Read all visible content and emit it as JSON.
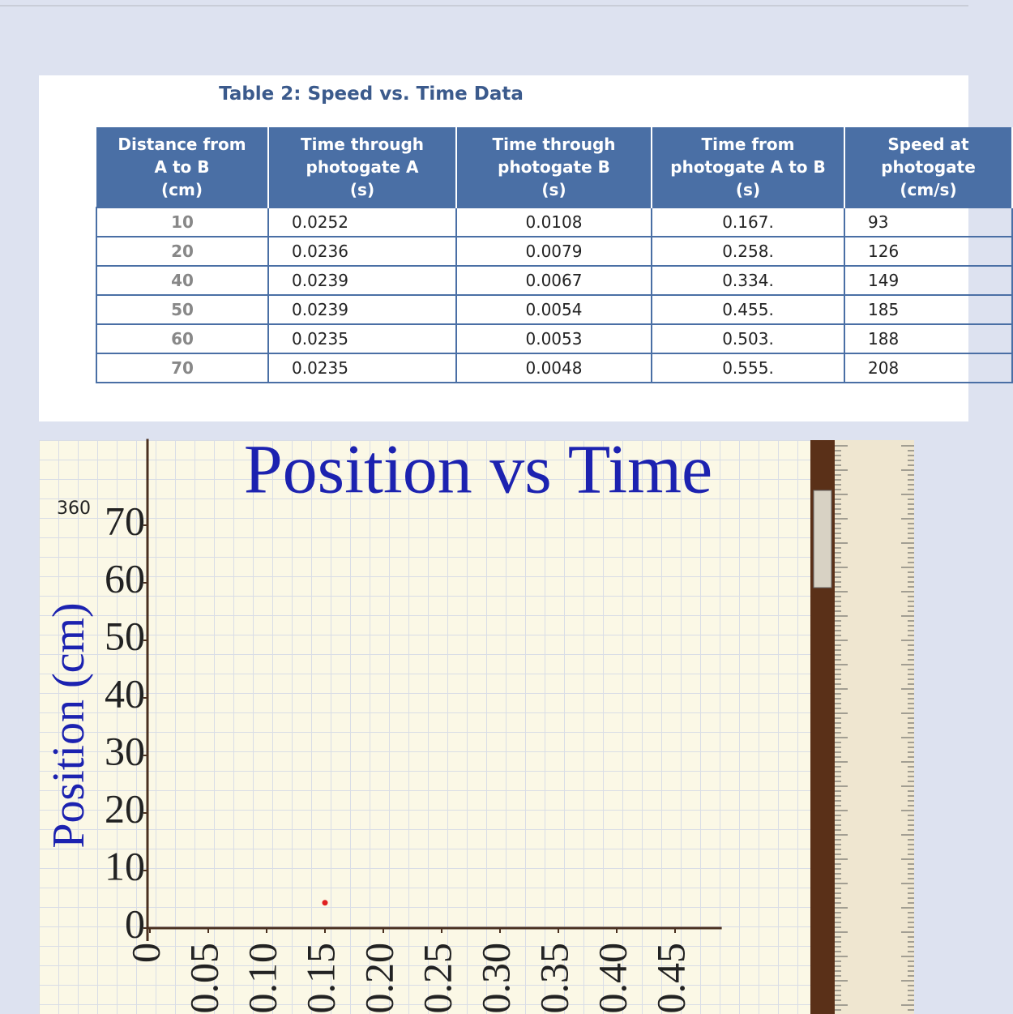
{
  "table": {
    "title": "Table 2: Speed vs. Time Data",
    "headers": [
      "Distance from\nA to B\n(cm)",
      "Time through\nphotogate A\n(s)",
      "Time through\nphotogate B\n(s)",
      "Time from\nphotogate A to B\n(s)",
      "Speed at\nphotogate\n(cm/s)"
    ],
    "rows": [
      [
        "10",
        "0.0252",
        "0.0108",
        "0.167.",
        "93"
      ],
      [
        "20",
        "0.0236",
        "0.0079",
        "0.258.",
        "126"
      ],
      [
        "40",
        "0.0239",
        "0.0067",
        "0.334.",
        "149"
      ],
      [
        "50",
        "0.0239",
        "0.0054",
        "0.455.",
        "185"
      ],
      [
        "60",
        "0.0235",
        "0.0053",
        "0.503.",
        "188"
      ],
      [
        "70",
        "0.0235",
        "0.0048",
        "0.555.",
        "208"
      ]
    ]
  },
  "chart_data": {
    "type": "scatter",
    "title": "Position vs Time",
    "y_label": "Position (cm)",
    "annotation": "360",
    "x": [
      0.15
    ],
    "values": [
      4.4
    ],
    "color": "#e02020",
    "xlim": [
      0,
      0.49
    ],
    "ylim": [
      0,
      85
    ],
    "xticks": [
      0,
      0.05,
      {
        "value": 0.1,
        "label": "0.10"
      },
      0.15,
      {
        "value": 0.2,
        "label": "0.20"
      },
      0.25,
      {
        "value": 0.3,
        "label": "0.30"
      },
      0.35,
      {
        "value": 0.4,
        "label": "0.40"
      },
      0.45
    ],
    "yticks": [
      0,
      10,
      20,
      30,
      40,
      50,
      60,
      70
    ]
  }
}
